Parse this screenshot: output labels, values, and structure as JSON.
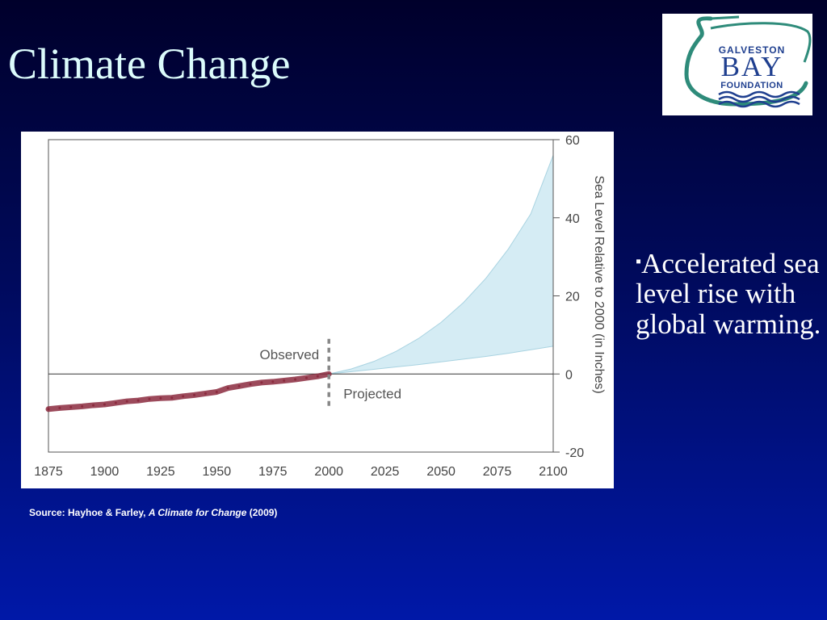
{
  "slide": {
    "title": "Climate Change",
    "bullet_marker": "▪",
    "bullet_text": "Accelerated sea level rise with global warming.",
    "source": {
      "prefix": "Source: Hayhoe & Farley, ",
      "book": "A Climate for Change",
      "suffix": " (2009)"
    }
  },
  "logo": {
    "line1": "GALVESTON",
    "line2": "BAY",
    "line3": "FOUNDATION",
    "colors": {
      "text": "#1f3f8f",
      "heron": "#2e8b7a",
      "water": "#1f3f8f"
    }
  },
  "colors": {
    "title": "#dcfcfc",
    "observed": "#8b2a3e",
    "projected_fill": "#d5ecf4",
    "projected_edge": "#a9d3e1",
    "divider": "#888888"
  },
  "chart_data": {
    "type": "area",
    "ylabel": "Sea Level Relative to 2000 (in Inches)",
    "xlim": [
      1875,
      2100
    ],
    "ylim": [
      -20,
      60
    ],
    "xticks": [
      1875,
      1900,
      1925,
      1950,
      1975,
      2000,
      2025,
      2050,
      2075,
      2100
    ],
    "yticks": [
      60,
      40,
      20,
      0,
      -20
    ],
    "divider_x": 2000,
    "annotations": {
      "observed": "Observed",
      "projected": "Projected"
    },
    "observed": {
      "x": [
        1875,
        1880,
        1885,
        1890,
        1895,
        1900,
        1905,
        1910,
        1915,
        1920,
        1925,
        1930,
        1935,
        1940,
        1945,
        1950,
        1955,
        1960,
        1965,
        1970,
        1975,
        1980,
        1985,
        1990,
        1995,
        2000
      ],
      "y": [
        -9.0,
        -8.7,
        -8.5,
        -8.3,
        -8.0,
        -7.8,
        -7.4,
        -7.0,
        -6.8,
        -6.4,
        -6.2,
        -6.1,
        -5.7,
        -5.4,
        -5.0,
        -4.6,
        -3.6,
        -3.1,
        -2.6,
        -2.2,
        -2.0,
        -1.7,
        -1.4,
        -1.0,
        -0.6,
        0.0
      ]
    },
    "projected_lower": {
      "x": [
        2000,
        2010,
        2020,
        2030,
        2040,
        2050,
        2060,
        2070,
        2080,
        2090,
        2100
      ],
      "y": [
        0.0,
        0.6,
        1.2,
        1.8,
        2.4,
        3.1,
        3.8,
        4.5,
        5.3,
        6.2,
        7.1
      ]
    },
    "projected_upper": {
      "x": [
        2000,
        2010,
        2020,
        2030,
        2040,
        2050,
        2060,
        2070,
        2080,
        2090,
        2100
      ],
      "y": [
        0.0,
        1.3,
        3.2,
        5.8,
        9.1,
        13.2,
        18.3,
        24.5,
        32.0,
        41.0,
        56.0
      ]
    }
  }
}
